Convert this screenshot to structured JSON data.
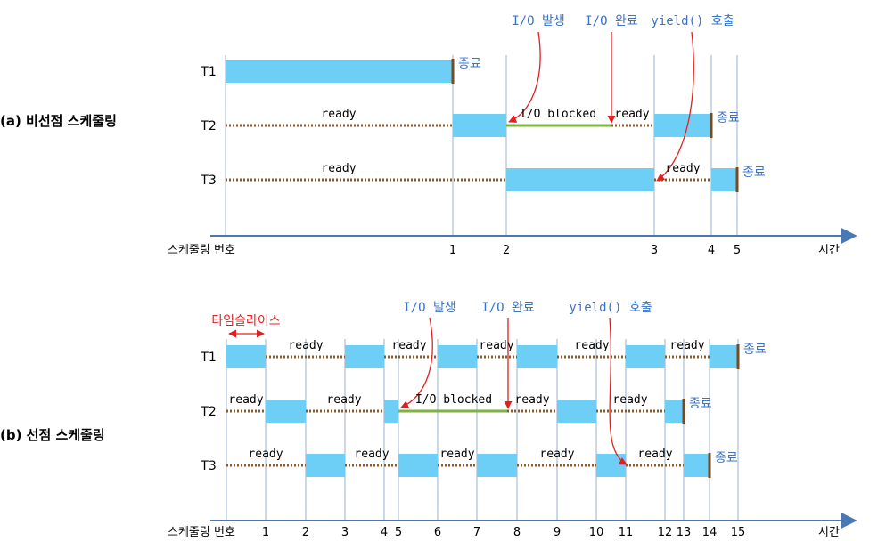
{
  "colors": {
    "bar": "#6dcff6",
    "ready_line": "#8b5a2b",
    "blocked_line": "#7cb342",
    "arrow": "#e02020",
    "axis": "#4a78b5",
    "gridline": "#9ab0cc",
    "annotation_text": "#3b73c8",
    "end_marker": "#7a4a1e"
  },
  "axis": {
    "prefix": "스케줄링 번호",
    "suffix": "시간"
  },
  "texts": {
    "ready": "ready",
    "io_blocked": "I/O blocked",
    "end": "종료",
    "io_occur": "I/O 발생",
    "io_done": "I/O 완료",
    "yield_call": "yield() 호출"
  },
  "sections": [
    {
      "label": "(a) 비선점 스케줄링",
      "tick_labels": [
        "1",
        "2",
        "3",
        "4",
        "5"
      ],
      "threads": [
        {
          "name": "T1"
        },
        {
          "name": "T2"
        },
        {
          "name": "T3"
        }
      ]
    },
    {
      "label": "(b) 선점 스케줄링",
      "timeslice_label": "타임슬라이스",
      "tick_labels": [
        "1",
        "2",
        "3",
        "4",
        "5",
        "6",
        "7",
        "8",
        "9",
        "10",
        "11",
        "12",
        "13",
        "14",
        "15"
      ],
      "threads": [
        {
          "name": "T1"
        },
        {
          "name": "T2"
        },
        {
          "name": "T3"
        }
      ]
    }
  ]
}
